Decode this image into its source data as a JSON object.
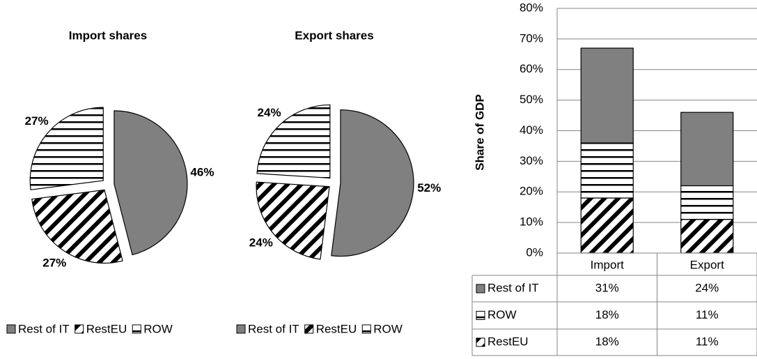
{
  "chart_data": [
    {
      "type": "pie",
      "title": "Import shares",
      "categories": [
        "Rest of IT",
        "RestEU",
        "ROW"
      ],
      "values": [
        46,
        27,
        27
      ],
      "value_labels": [
        "46%",
        "27%",
        "27%"
      ],
      "patterns": [
        "solid",
        "diagonal",
        "horizontal"
      ],
      "color": "#808080",
      "legend": "bottom"
    },
    {
      "type": "pie",
      "title": "Export shares",
      "categories": [
        "Rest of IT",
        "RestEU",
        "ROW"
      ],
      "values": [
        52,
        24,
        24
      ],
      "value_labels": [
        "52%",
        "24%",
        "24%"
      ],
      "patterns": [
        "solid",
        "diagonal",
        "horizontal"
      ],
      "color": "#808080",
      "legend": "bottom"
    },
    {
      "type": "stacked_bar",
      "y_label": "Share of GDP",
      "categories": [
        "Import",
        "Export"
      ],
      "series": [
        {
          "name": "RestEU",
          "pattern": "diagonal",
          "values": [
            18,
            11
          ],
          "value_labels": [
            "18%",
            "11%"
          ]
        },
        {
          "name": "ROW",
          "pattern": "horizontal",
          "values": [
            18,
            11
          ],
          "value_labels": [
            "18%",
            "11%"
          ]
        },
        {
          "name": "Rest of IT",
          "pattern": "solid",
          "color": "#808080",
          "values": [
            31,
            24
          ],
          "value_labels": [
            "31%",
            "24%"
          ]
        }
      ],
      "ylim": [
        0,
        80
      ],
      "yticks": [
        {
          "value": 0,
          "label": "0%"
        },
        {
          "value": 10,
          "label": "10%"
        },
        {
          "value": 20,
          "label": "20%"
        },
        {
          "value": 30,
          "label": "30%"
        },
        {
          "value": 40,
          "label": "40%"
        },
        {
          "value": 50,
          "label": "50%"
        },
        {
          "value": 60,
          "label": "60%"
        },
        {
          "value": 70,
          "label": "70%"
        },
        {
          "value": 80,
          "label": "80%"
        }
      ],
      "grid": true,
      "data_table": true
    }
  ]
}
